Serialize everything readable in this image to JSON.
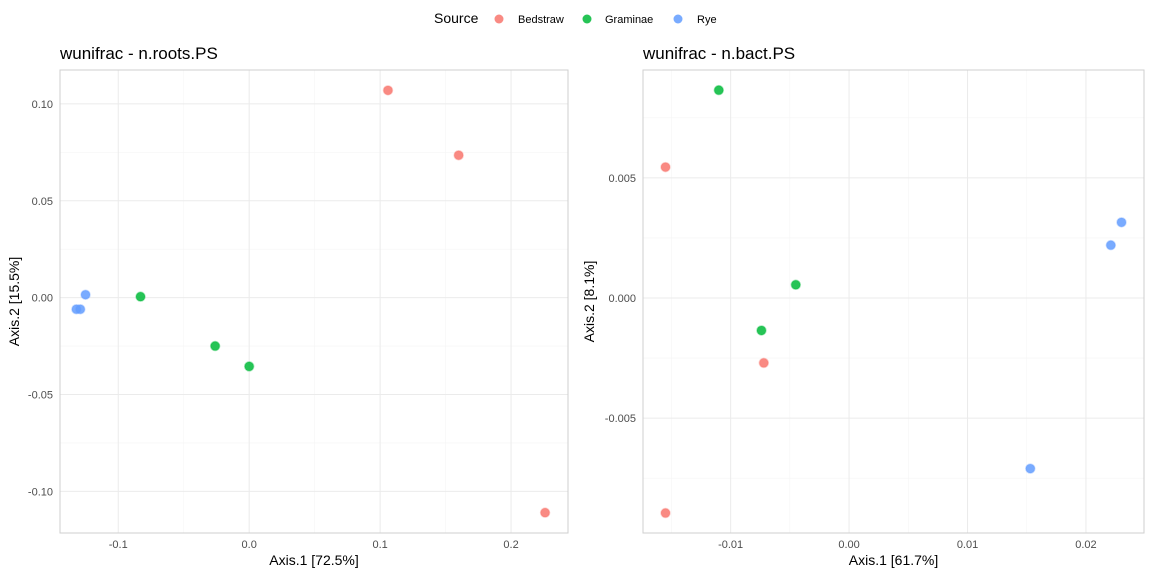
{
  "legend": {
    "title": "Source",
    "items": [
      {
        "label": "Bedstraw",
        "color": "#F8766D"
      },
      {
        "label": "Graminae",
        "color": "#00BA38"
      },
      {
        "label": "Rye",
        "color": "#619CFF"
      }
    ]
  },
  "chart_data": [
    {
      "type": "scatter",
      "title": "wunifrac - n.roots.PS",
      "xlabel": "Axis.1   [72.5%]",
      "ylabel": "Axis.2   [15.5%]",
      "xlim": [
        -0.1445,
        0.2435
      ],
      "ylim": [
        -0.1215,
        0.1175
      ],
      "xticks": [
        -0.1,
        0.0,
        0.1,
        0.2
      ],
      "xtick_labels": [
        "-0.1",
        "0.0",
        "0.1",
        "0.2"
      ],
      "yticks": [
        0.1,
        0.05,
        0.0,
        -0.05,
        -0.1
      ],
      "ytick_labels": [
        "0.10",
        "0.05",
        "0.00",
        "-0.05",
        "-0.10"
      ],
      "grid": true,
      "series": [
        {
          "name": "Bedstraw",
          "points": [
            [
              0.106,
              0.107
            ],
            [
              0.16,
              0.0735
            ],
            [
              0.226,
              -0.111
            ]
          ]
        },
        {
          "name": "Graminae",
          "points": [
            [
              -0.083,
              0.0005
            ],
            [
              -0.026,
              -0.025
            ],
            [
              0.0,
              -0.0355
            ]
          ]
        },
        {
          "name": "Rye",
          "points": [
            [
              -0.125,
              0.0015
            ],
            [
              -0.132,
              -0.006
            ],
            [
              -0.129,
              -0.006
            ]
          ]
        }
      ]
    },
    {
      "type": "scatter",
      "title": "wunifrac - n.bact.PS",
      "xlabel": "Axis.1   [61.7%]",
      "ylabel": "Axis.2   [8.1%]",
      "xlim": [
        -0.0174,
        0.0249
      ],
      "ylim": [
        -0.00978,
        0.00949
      ],
      "xticks": [
        -0.01,
        0.0,
        0.01,
        0.02
      ],
      "xtick_labels": [
        "-0.01",
        "0.00",
        "0.01",
        "0.02"
      ],
      "yticks": [
        0.005,
        0.0,
        -0.005
      ],
      "ytick_labels": [
        "0.005",
        "0.000",
        "-0.005"
      ],
      "grid": true,
      "series": [
        {
          "name": "Bedstraw",
          "points": [
            [
              -0.0155,
              0.00545
            ],
            [
              -0.0072,
              -0.0027
            ],
            [
              -0.0155,
              -0.00895
            ]
          ]
        },
        {
          "name": "Graminae",
          "points": [
            [
              -0.011,
              0.00865
            ],
            [
              -0.0045,
              0.00055
            ],
            [
              -0.0074,
              -0.00135
            ]
          ]
        },
        {
          "name": "Rye",
          "points": [
            [
              0.023,
              0.00315
            ],
            [
              0.0221,
              0.0022
            ],
            [
              0.0153,
              -0.0071
            ]
          ]
        }
      ]
    }
  ]
}
